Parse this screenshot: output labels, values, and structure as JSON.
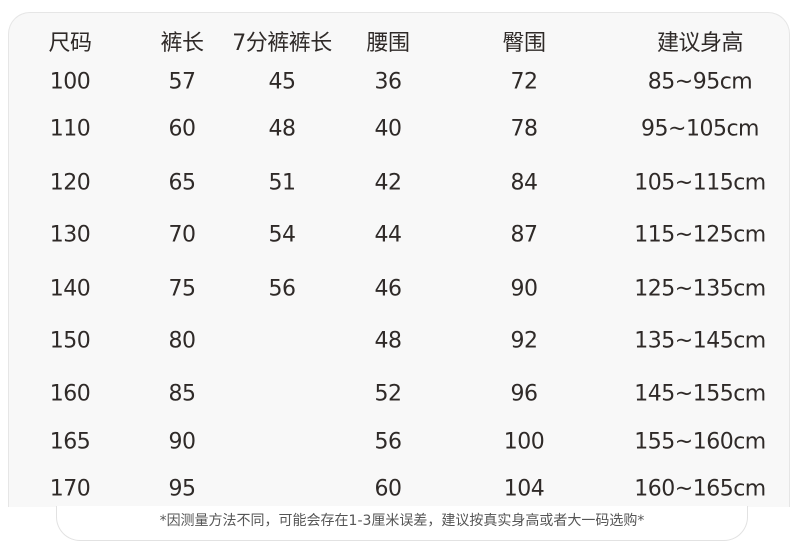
{
  "table": {
    "headers": [
      "尺码",
      "裤长",
      "7分裤裤长",
      "腰围",
      "臀围",
      "建议身高"
    ],
    "rows": [
      [
        "100",
        "57",
        "45",
        "36",
        "72",
        "85~95cm"
      ],
      [
        "110",
        "60",
        "48",
        "40",
        "78",
        "95~105cm"
      ],
      [
        "120",
        "65",
        "51",
        "42",
        "84",
        "105~115cm"
      ],
      [
        "130",
        "70",
        "54",
        "44",
        "87",
        "115~125cm"
      ],
      [
        "140",
        "75",
        "56",
        "46",
        "90",
        "125~135cm"
      ],
      [
        "150",
        "80",
        "",
        "48",
        "92",
        "135~145cm"
      ],
      [
        "160",
        "85",
        "",
        "52",
        "96",
        "145~155cm"
      ],
      [
        "165",
        "90",
        "",
        "56",
        "100",
        "155~160cm"
      ],
      [
        "170",
        "95",
        "",
        "60",
        "104",
        "160~165cm"
      ]
    ]
  },
  "footnote": "*因测量方法不同，可能会存在1-3厘米误差，建议按真实身高或者大一码选购*"
}
